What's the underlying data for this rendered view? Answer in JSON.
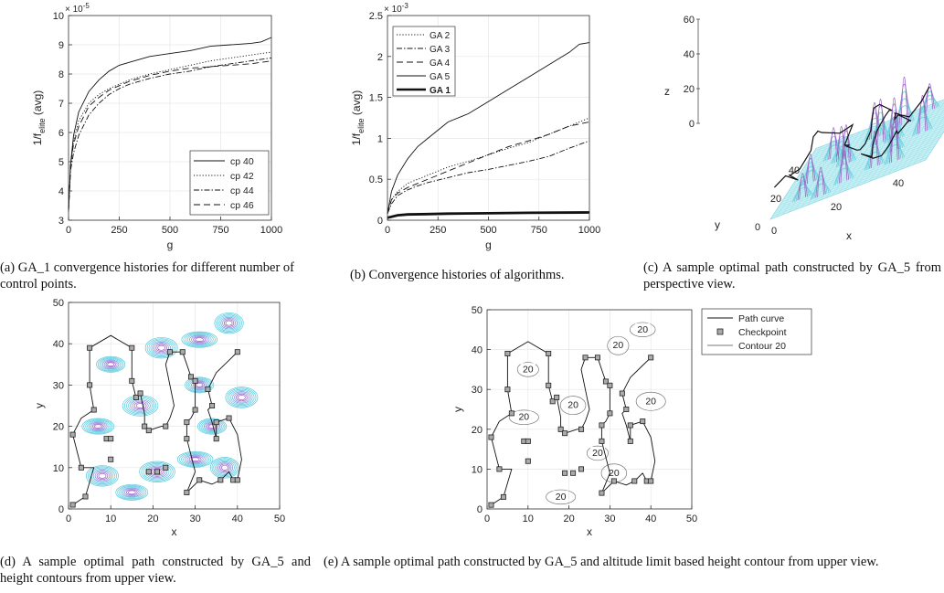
{
  "captions": {
    "a": "(a) GA_1 convergence histories for different number of control points.",
    "b": "(b) Convergence histories of algorithms.",
    "c": "(c) A sample optimal path constructed by GA_5 from perspective view.",
    "d": "(d) A sample optimal path constructed by GA_5 and height contours from upper view.",
    "e": "(e) A sample optimal path constructed by GA_5 and altitude limit based height contour from upper view."
  },
  "chart_data": [
    {
      "id": "a",
      "type": "line",
      "xlabel": "g",
      "ylabel": "1/f_elite (avg)",
      "ylabel_main": "1/f",
      "ylabel_sub": "elite",
      "ylabel_tail": " (avg)",
      "y_exponent": "× 10",
      "y_exponent_power": "-5",
      "xlim": [
        0,
        1000
      ],
      "ylim": [
        3,
        10
      ],
      "xticks": [
        0,
        250,
        500,
        750,
        1000
      ],
      "yticks": [
        3,
        4,
        5,
        6,
        7,
        8,
        9,
        10
      ],
      "legend_position": "bottom-right",
      "series": [
        {
          "name": "cp 40",
          "style": "solid",
          "x": [
            0,
            10,
            25,
            50,
            100,
            150,
            200,
            250,
            300,
            400,
            500,
            600,
            700,
            800,
            900,
            950,
            1000
          ],
          "y": [
            3.3,
            4.9,
            5.9,
            6.7,
            7.4,
            7.8,
            8.1,
            8.3,
            8.4,
            8.6,
            8.7,
            8.8,
            8.95,
            9.0,
            9.05,
            9.1,
            9.25
          ]
        },
        {
          "name": "cp 42",
          "style": "dotted",
          "x": [
            0,
            10,
            25,
            50,
            100,
            150,
            200,
            250,
            300,
            400,
            500,
            600,
            700,
            800,
            900,
            1000
          ],
          "y": [
            3.3,
            4.8,
            5.7,
            6.4,
            7.0,
            7.3,
            7.5,
            7.65,
            7.8,
            8.0,
            8.15,
            8.3,
            8.45,
            8.55,
            8.65,
            8.75
          ]
        },
        {
          "name": "cp 44",
          "style": "dashdot",
          "x": [
            0,
            10,
            25,
            50,
            100,
            150,
            200,
            250,
            300,
            400,
            500,
            600,
            700,
            800,
            900,
            1000
          ],
          "y": [
            3.3,
            4.7,
            5.3,
            5.9,
            6.6,
            7.0,
            7.3,
            7.5,
            7.65,
            7.85,
            8.0,
            8.1,
            8.25,
            8.35,
            8.45,
            8.55
          ]
        },
        {
          "name": "cp 46",
          "style": "dashed",
          "x": [
            0,
            10,
            25,
            50,
            100,
            150,
            200,
            250,
            300,
            400,
            500,
            600,
            700,
            800,
            900,
            1000
          ],
          "y": [
            3.3,
            4.9,
            5.6,
            6.2,
            6.9,
            7.2,
            7.45,
            7.6,
            7.75,
            7.95,
            8.1,
            8.2,
            8.25,
            8.3,
            8.35,
            8.45
          ]
        }
      ]
    },
    {
      "id": "b",
      "type": "line",
      "xlabel": "g",
      "ylabel": "1/f_elite (avg)",
      "ylabel_main": "1/f",
      "ylabel_sub": "elite",
      "ylabel_tail": " (avg)",
      "y_exponent": "× 10",
      "y_exponent_power": "-3",
      "xlim": [
        0,
        1000
      ],
      "ylim": [
        0,
        2.5
      ],
      "xticks": [
        0,
        250,
        500,
        750,
        1000
      ],
      "yticks": [
        0,
        0.5,
        1,
        1.5,
        2,
        2.5
      ],
      "ytick_labels": [
        "0",
        "0.5",
        "1",
        "1.5",
        "2",
        "2.5"
      ],
      "legend_position": "top-left",
      "series": [
        {
          "name": "GA 2",
          "style": "dotted",
          "x": [
            0,
            20,
            50,
            100,
            150,
            200,
            300,
            400,
            500,
            600,
            700,
            800,
            900,
            1000
          ],
          "y": [
            0.08,
            0.25,
            0.35,
            0.45,
            0.5,
            0.55,
            0.65,
            0.72,
            0.8,
            0.88,
            0.95,
            1.05,
            1.15,
            1.25
          ]
        },
        {
          "name": "GA 3",
          "style": "dashdot",
          "x": [
            0,
            20,
            50,
            100,
            150,
            200,
            300,
            400,
            500,
            600,
            700,
            800,
            900,
            1000
          ],
          "y": [
            0.08,
            0.2,
            0.3,
            0.37,
            0.42,
            0.46,
            0.52,
            0.58,
            0.62,
            0.67,
            0.72,
            0.78,
            0.88,
            0.97
          ]
        },
        {
          "name": "GA 4",
          "style": "dashed",
          "x": [
            0,
            20,
            50,
            100,
            150,
            200,
            300,
            400,
            500,
            600,
            700,
            800,
            900,
            1000
          ],
          "y": [
            0.08,
            0.25,
            0.33,
            0.4,
            0.45,
            0.5,
            0.6,
            0.7,
            0.8,
            0.9,
            0.97,
            1.05,
            1.15,
            1.2
          ]
        },
        {
          "name": "GA 5",
          "style": "solid",
          "x": [
            0,
            20,
            50,
            100,
            150,
            200,
            250,
            300,
            400,
            500,
            600,
            700,
            800,
            900,
            950,
            1000
          ],
          "y": [
            0.08,
            0.35,
            0.55,
            0.75,
            0.9,
            1.0,
            1.1,
            1.2,
            1.3,
            1.45,
            1.6,
            1.75,
            1.9,
            2.05,
            2.15,
            2.17
          ]
        },
        {
          "name": "GA 1",
          "style": "thick",
          "x": [
            0,
            50,
            100,
            200,
            300,
            500,
            700,
            1000
          ],
          "y": [
            0.03,
            0.06,
            0.07,
            0.075,
            0.08,
            0.085,
            0.09,
            0.095
          ]
        }
      ]
    },
    {
      "id": "c",
      "type": "surface",
      "xlabel": "x",
      "ylabel": "y",
      "zlabel": "z",
      "xticks": [
        0,
        20,
        40
      ],
      "yticks": [
        0,
        20,
        40
      ],
      "zticks": [
        0,
        20,
        40,
        60
      ],
      "zlim": [
        0,
        60
      ]
    },
    {
      "id": "d",
      "type": "contour",
      "xlabel": "x",
      "ylabel": "y",
      "xlim": [
        0,
        50
      ],
      "ylim": [
        0,
        50
      ],
      "xticks": [
        0,
        10,
        20,
        30,
        40,
        50
      ],
      "yticks": [
        0,
        10,
        20,
        30,
        40,
        50
      ],
      "hills": [
        [
          10,
          35
        ],
        [
          22,
          39
        ],
        [
          31,
          41
        ],
        [
          38,
          45
        ],
        [
          7,
          20
        ],
        [
          17,
          25
        ],
        [
          31,
          30
        ],
        [
          41,
          27
        ],
        [
          30,
          12
        ],
        [
          37,
          10
        ],
        [
          15,
          4
        ],
        [
          21,
          9
        ],
        [
          34,
          20
        ],
        [
          8,
          8
        ]
      ],
      "checkpoints": [
        [
          1,
          1
        ],
        [
          4,
          3
        ],
        [
          3,
          10
        ],
        [
          1,
          18
        ],
        [
          6,
          24
        ],
        [
          5,
          30
        ],
        [
          5,
          39
        ],
        [
          9,
          17
        ],
        [
          10,
          17
        ],
        [
          10,
          12
        ],
        [
          15,
          39
        ],
        [
          15,
          31
        ],
        [
          16,
          27
        ],
        [
          17,
          28
        ],
        [
          18,
          20
        ],
        [
          19,
          19
        ],
        [
          19,
          9
        ],
        [
          21,
          9
        ],
        [
          23,
          20
        ],
        [
          23,
          10
        ],
        [
          24,
          38
        ],
        [
          27,
          38
        ],
        [
          28,
          21
        ],
        [
          28,
          17
        ],
        [
          28,
          4
        ],
        [
          29,
          32
        ],
        [
          30,
          31
        ],
        [
          30,
          24
        ],
        [
          31,
          7
        ],
        [
          33,
          29
        ],
        [
          34,
          25
        ],
        [
          35,
          21
        ],
        [
          35,
          17
        ],
        [
          36,
          7
        ],
        [
          38,
          22
        ],
        [
          39,
          7
        ],
        [
          40,
          7
        ],
        [
          40,
          38
        ]
      ],
      "path": [
        [
          1,
          1
        ],
        [
          4,
          3
        ],
        [
          6,
          10
        ],
        [
          3,
          10
        ],
        [
          1,
          18
        ],
        [
          3,
          22
        ],
        [
          6,
          24
        ],
        [
          5,
          30
        ],
        [
          5,
          35
        ],
        [
          5,
          39
        ],
        [
          10,
          42
        ],
        [
          15,
          39
        ],
        [
          15,
          31
        ],
        [
          16,
          27
        ],
        [
          17,
          28
        ],
        [
          18,
          23
        ],
        [
          18,
          20
        ],
        [
          19,
          19
        ],
        [
          22,
          20
        ],
        [
          23,
          20
        ],
        [
          24,
          22
        ],
        [
          25,
          25
        ],
        [
          24,
          30
        ],
        [
          23,
          35
        ],
        [
          24,
          38
        ],
        [
          27,
          38
        ],
        [
          28,
          35
        ],
        [
          29,
          32
        ],
        [
          30,
          31
        ],
        [
          30,
          28
        ],
        [
          30,
          24
        ],
        [
          29,
          22
        ],
        [
          28,
          21
        ],
        [
          28,
          17
        ],
        [
          29,
          13
        ],
        [
          30,
          9
        ],
        [
          28,
          4
        ],
        [
          31,
          7
        ],
        [
          34,
          6
        ],
        [
          36,
          7
        ],
        [
          38,
          9
        ],
        [
          39,
          7
        ],
        [
          40,
          7
        ],
        [
          41,
          12
        ],
        [
          40,
          18
        ],
        [
          38,
          22
        ],
        [
          35,
          21
        ],
        [
          35,
          17
        ],
        [
          34,
          21
        ],
        [
          33,
          24
        ],
        [
          34,
          25
        ],
        [
          33,
          29
        ],
        [
          35,
          33
        ],
        [
          38,
          36
        ],
        [
          40,
          38
        ]
      ]
    },
    {
      "id": "e",
      "type": "contour",
      "xlabel": "x",
      "ylabel": "y",
      "xlim": [
        0,
        50
      ],
      "ylim": [
        0,
        50
      ],
      "xticks": [
        0,
        10,
        20,
        30,
        40,
        50
      ],
      "yticks": [
        0,
        10,
        20,
        30,
        40,
        50
      ],
      "contour_label": "20",
      "legend": [
        "Path curve",
        "Checkpoint",
        "Contour 20"
      ],
      "legend_position": "outside-right",
      "contour_label_points": [
        [
          10,
          35
        ],
        [
          21,
          26
        ],
        [
          9,
          23
        ],
        [
          32,
          41
        ],
        [
          38,
          45
        ],
        [
          40,
          27
        ],
        [
          27,
          14
        ],
        [
          31,
          9
        ],
        [
          18,
          3
        ]
      ]
    }
  ]
}
